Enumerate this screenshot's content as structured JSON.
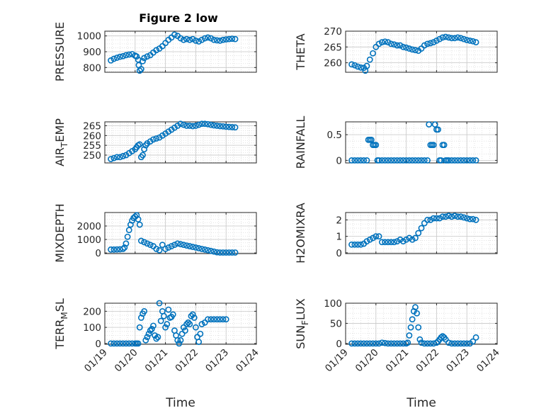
{
  "figure": {
    "title": "Figure 2 low",
    "marker_color": "#0072BD",
    "axes_color": "#262626",
    "grid_color": "#dcdcdc"
  },
  "chart_data": [
    {
      "type": "scatter",
      "title": "Figure 2 low",
      "ylabel": "PRESSURE",
      "xlabel": "",
      "xlim": [
        0,
        5
      ],
      "ylim": [
        770,
        1030
      ],
      "xticks": [
        0,
        1,
        2,
        3,
        4,
        5
      ],
      "yticks": [
        800,
        900,
        1000
      ],
      "grid": true,
      "x": [
        0.2,
        0.3,
        0.4,
        0.5,
        0.6,
        0.7,
        0.8,
        0.9,
        1.0,
        1.05,
        1.1,
        1.12,
        1.15,
        1.2,
        1.25,
        1.3,
        1.4,
        1.5,
        1.6,
        1.7,
        1.8,
        1.9,
        2.0,
        2.1,
        2.2,
        2.3,
        2.4,
        2.5,
        2.6,
        2.7,
        2.8,
        2.9,
        3.0,
        3.1,
        3.2,
        3.3,
        3.4,
        3.5,
        3.6,
        3.7,
        3.8,
        3.9,
        4.0,
        4.1,
        4.2,
        4.3
      ],
      "y": [
        845,
        855,
        862,
        868,
        872,
        878,
        882,
        885,
        875,
        870,
        850,
        815,
        780,
        790,
        840,
        860,
        870,
        878,
        895,
        910,
        920,
        935,
        955,
        975,
        990,
        1008,
        1000,
        985,
        975,
        980,
        975,
        980,
        970,
        965,
        975,
        985,
        990,
        985,
        975,
        972,
        970,
        975,
        978,
        980,
        982,
        980
      ]
    },
    {
      "type": "scatter",
      "ylabel": "THETA",
      "xlabel": "",
      "xlim": [
        0,
        5
      ],
      "ylim": [
        257,
        270
      ],
      "xticks": [
        0,
        1,
        2,
        3,
        4,
        5
      ],
      "yticks": [
        260,
        265,
        270
      ],
      "grid": true,
      "x": [
        0.2,
        0.3,
        0.4,
        0.5,
        0.6,
        0.65,
        0.7,
        0.8,
        0.9,
        1.0,
        1.1,
        1.2,
        1.3,
        1.4,
        1.5,
        1.6,
        1.7,
        1.8,
        1.9,
        2.0,
        2.1,
        2.2,
        2.3,
        2.4,
        2.5,
        2.6,
        2.7,
        2.8,
        2.9,
        3.0,
        3.1,
        3.2,
        3.3,
        3.4,
        3.5,
        3.6,
        3.7,
        3.8,
        3.9,
        4.0,
        4.1,
        4.2,
        4.3
      ],
      "y": [
        259.5,
        259.2,
        258.8,
        258.5,
        258.4,
        257.5,
        259,
        261,
        263,
        265,
        266,
        266.5,
        266.7,
        266.5,
        266,
        265.8,
        265.5,
        265.5,
        265,
        264.8,
        264.5,
        264.2,
        264,
        263.8,
        264.5,
        265.5,
        266,
        266.2,
        266.5,
        267,
        267.5,
        268,
        268.2,
        268,
        267.8,
        267.8,
        268,
        267.8,
        267.5,
        267.2,
        267,
        266.8,
        266.5
      ]
    },
    {
      "type": "scatter",
      "ylabel": "AIR_TEMP",
      "xlabel": "",
      "xlim": [
        0,
        5
      ],
      "ylim": [
        246,
        267
      ],
      "xticks": [
        0,
        1,
        2,
        3,
        4,
        5
      ],
      "yticks": [
        250,
        255,
        260,
        265
      ],
      "grid": true,
      "x": [
        0.2,
        0.3,
        0.4,
        0.5,
        0.6,
        0.7,
        0.8,
        0.9,
        1.0,
        1.05,
        1.1,
        1.15,
        1.2,
        1.25,
        1.3,
        1.35,
        1.4,
        1.5,
        1.6,
        1.7,
        1.8,
        1.9,
        2.0,
        2.1,
        2.2,
        2.3,
        2.4,
        2.5,
        2.6,
        2.7,
        2.8,
        2.9,
        3.0,
        3.1,
        3.2,
        3.3,
        3.4,
        3.5,
        3.6,
        3.7,
        3.8,
        3.9,
        4.0,
        4.1,
        4.2,
        4.3
      ],
      "y": [
        248,
        248.5,
        249,
        249,
        249.5,
        250,
        251,
        252,
        253,
        254,
        255,
        255.5,
        249,
        250,
        253,
        255,
        256,
        257,
        258,
        258.5,
        259,
        260,
        261,
        262,
        263,
        264,
        265,
        266,
        265.5,
        265,
        265,
        264.8,
        265,
        265.5,
        266,
        266,
        265.8,
        265.5,
        265.2,
        265,
        264.8,
        264.7,
        264.5,
        264.4,
        264.3,
        264.2
      ]
    },
    {
      "type": "scatter",
      "ylabel": "RAINFALL",
      "xlabel": "",
      "xlim": [
        0,
        5
      ],
      "ylim": [
        -0.05,
        0.75
      ],
      "xticks": [
        0,
        1,
        2,
        3,
        4,
        5
      ],
      "yticks": [
        0,
        0.5
      ],
      "grid": true,
      "x": [
        0.2,
        0.3,
        0.4,
        0.5,
        0.6,
        0.7,
        0.75,
        0.8,
        0.85,
        0.9,
        0.95,
        1.0,
        1.05,
        1.1,
        1.2,
        1.3,
        1.4,
        1.5,
        1.6,
        1.7,
        1.8,
        1.9,
        2.0,
        2.1,
        2.2,
        2.3,
        2.4,
        2.5,
        2.6,
        2.7,
        2.75,
        2.8,
        2.85,
        2.9,
        2.95,
        3.0,
        3.05,
        3.1,
        3.15,
        3.2,
        3.25,
        3.3,
        3.35,
        3.4,
        3.5,
        3.6,
        3.7,
        3.8,
        3.9,
        4.0,
        4.1,
        4.2,
        4.3
      ],
      "y": [
        0,
        0,
        0,
        0,
        0,
        0,
        0.4,
        0.4,
        0.4,
        0.3,
        0.3,
        0.3,
        0,
        0,
        0,
        0,
        0,
        0,
        0,
        0,
        0,
        0,
        0,
        0,
        0,
        0,
        0,
        0,
        0,
        0,
        0.7,
        0.3,
        0.3,
        0.3,
        0.7,
        0.6,
        0.6,
        0,
        0,
        0.3,
        0.3,
        0,
        0,
        0,
        0,
        0,
        0,
        0,
        0,
        0,
        0,
        0,
        0
      ]
    },
    {
      "type": "scatter",
      "ylabel": "MIXDEPTH",
      "xlabel": "",
      "xlim": [
        0,
        5
      ],
      "ylim": [
        -50,
        3000
      ],
      "xticks": [
        0,
        1,
        2,
        3,
        4,
        5
      ],
      "yticks": [
        0,
        1000,
        2000
      ],
      "grid": true,
      "x": [
        0.2,
        0.3,
        0.4,
        0.5,
        0.6,
        0.65,
        0.7,
        0.75,
        0.8,
        0.85,
        0.9,
        0.95,
        1.0,
        1.05,
        1.1,
        1.15,
        1.2,
        1.3,
        1.4,
        1.5,
        1.6,
        1.7,
        1.8,
        1.9,
        2.0,
        2.1,
        2.2,
        2.3,
        2.4,
        2.5,
        2.6,
        2.7,
        2.8,
        2.9,
        3.0,
        3.1,
        3.2,
        3.3,
        3.4,
        3.5,
        3.6,
        3.7,
        3.8,
        3.9,
        4.0,
        4.1,
        4.2,
        4.3
      ],
      "y": [
        250,
        250,
        260,
        270,
        300,
        400,
        700,
        1200,
        1700,
        2100,
        2400,
        2600,
        2700,
        2800,
        2500,
        2100,
        900,
        800,
        700,
        600,
        500,
        300,
        200,
        600,
        300,
        400,
        500,
        600,
        700,
        650,
        600,
        550,
        500,
        450,
        400,
        350,
        300,
        250,
        200,
        150,
        100,
        50,
        30,
        30,
        30,
        30,
        30,
        30
      ]
    },
    {
      "type": "scatter",
      "ylabel": "H2OMIXRA",
      "xlabel": "",
      "xlim": [
        0,
        5
      ],
      "ylim": [
        -0.05,
        2.45
      ],
      "xticks": [
        0,
        1,
        2,
        3,
        4,
        5
      ],
      "yticks": [
        0,
        1,
        2
      ],
      "grid": true,
      "x": [
        0.2,
        0.3,
        0.4,
        0.5,
        0.6,
        0.7,
        0.8,
        0.9,
        1.0,
        1.1,
        1.2,
        1.3,
        1.4,
        1.5,
        1.6,
        1.7,
        1.8,
        1.9,
        2.0,
        2.1,
        2.2,
        2.3,
        2.4,
        2.5,
        2.6,
        2.7,
        2.8,
        2.9,
        3.0,
        3.1,
        3.2,
        3.3,
        3.4,
        3.5,
        3.6,
        3.7,
        3.8,
        3.9,
        4.0,
        4.1,
        4.2,
        4.3
      ],
      "y": [
        0.5,
        0.5,
        0.5,
        0.5,
        0.55,
        0.7,
        0.8,
        0.9,
        1.0,
        1.0,
        0.65,
        0.65,
        0.65,
        0.65,
        0.65,
        0.7,
        0.8,
        0.7,
        0.8,
        0.9,
        0.8,
        0.9,
        1.2,
        1.5,
        1.8,
        2.0,
        2.0,
        2.1,
        2.1,
        2.1,
        2.2,
        2.2,
        2.25,
        2.2,
        2.25,
        2.2,
        2.2,
        2.15,
        2.1,
        2.05,
        2.05,
        2.0
      ]
    },
    {
      "type": "scatter",
      "ylabel": "TERR_MSL",
      "xlabel": "Time",
      "xlim": [
        0,
        5
      ],
      "ylim": [
        -5,
        250
      ],
      "xticks": [
        0,
        1,
        2,
        3,
        4,
        5
      ],
      "yticks": [
        0,
        100,
        200
      ],
      "xticklabels": [
        "01/19",
        "01/20",
        "01/21",
        "01/22",
        "01/23",
        "01/24"
      ],
      "grid": true,
      "x": [
        0.2,
        0.3,
        0.4,
        0.5,
        0.6,
        0.7,
        0.8,
        0.9,
        1.0,
        1.05,
        1.1,
        1.15,
        1.2,
        1.25,
        1.3,
        1.35,
        1.4,
        1.45,
        1.5,
        1.55,
        1.6,
        1.65,
        1.7,
        1.75,
        1.8,
        1.85,
        1.9,
        1.95,
        2.0,
        2.05,
        2.1,
        2.15,
        2.2,
        2.25,
        2.3,
        2.35,
        2.4,
        2.45,
        2.5,
        2.55,
        2.6,
        2.65,
        2.7,
        2.75,
        2.8,
        2.85,
        2.9,
        2.95,
        3.0,
        3.05,
        3.1,
        3.15,
        3.2,
        3.3,
        3.4,
        3.5,
        3.6,
        3.7,
        3.8,
        3.9,
        4.0
      ],
      "y": [
        0,
        0,
        0,
        0,
        0,
        0,
        0,
        0,
        0,
        0,
        0,
        100,
        160,
        185,
        200,
        20,
        40,
        60,
        80,
        90,
        110,
        50,
        30,
        40,
        250,
        140,
        200,
        170,
        100,
        120,
        210,
        160,
        165,
        180,
        80,
        50,
        20,
        0,
        20,
        60,
        100,
        80,
        120,
        130,
        120,
        170,
        180,
        160,
        100,
        40,
        10,
        60,
        120,
        130,
        150,
        150,
        150,
        150,
        150,
        150,
        150
      ]
    },
    {
      "type": "scatter",
      "ylabel": "SUN_FLUX",
      "xlabel": "Time",
      "xlim": [
        0,
        5
      ],
      "ylim": [
        -2,
        100
      ],
      "xticks": [
        0,
        1,
        2,
        3,
        4,
        5
      ],
      "yticks": [
        0,
        50,
        100
      ],
      "xticklabels": [
        "01/19",
        "01/20",
        "01/21",
        "01/22",
        "01/23",
        "01/24"
      ],
      "grid": true,
      "x": [
        0.2,
        0.3,
        0.4,
        0.5,
        0.6,
        0.7,
        0.8,
        0.9,
        1.0,
        1.1,
        1.2,
        1.3,
        1.4,
        1.5,
        1.6,
        1.7,
        1.8,
        1.9,
        2.0,
        2.05,
        2.1,
        2.15,
        2.2,
        2.25,
        2.3,
        2.35,
        2.4,
        2.45,
        2.5,
        2.6,
        2.7,
        2.8,
        2.9,
        3.0,
        3.05,
        3.1,
        3.15,
        3.2,
        3.25,
        3.3,
        3.4,
        3.5,
        3.6,
        3.7,
        3.8,
        3.9,
        4.0,
        4.1,
        4.2,
        4.3
      ],
      "y": [
        0,
        0,
        0,
        0,
        0,
        0,
        0,
        0,
        0,
        0,
        2,
        1,
        0,
        0,
        0,
        0,
        0,
        0,
        0,
        2,
        20,
        40,
        60,
        80,
        90,
        75,
        40,
        10,
        2,
        0,
        0,
        0,
        0,
        2,
        5,
        10,
        15,
        18,
        15,
        10,
        2,
        0,
        0,
        0,
        0,
        0,
        0,
        0,
        5,
        15
      ]
    }
  ]
}
